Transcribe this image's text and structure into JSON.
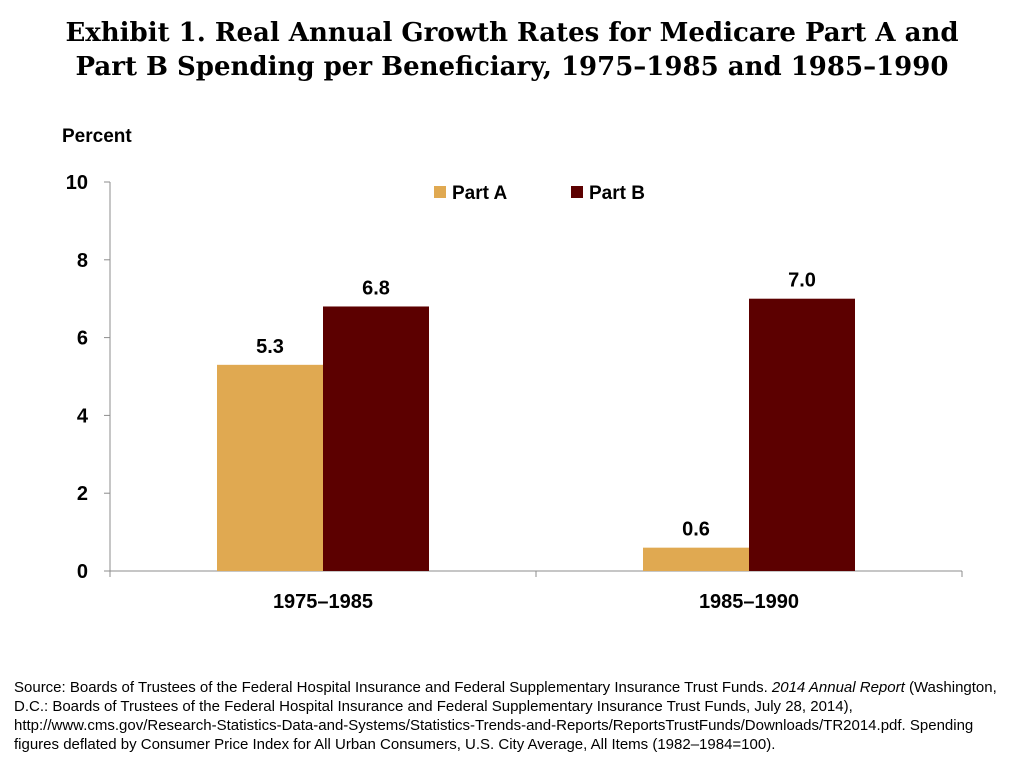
{
  "title_lines": [
    "Exhibit 1. Real Annual Growth Rates for Medicare Part A and",
    "Part B Spending per Beneficiary, 1975–1985 and 1985–1990"
  ],
  "colors": {
    "part_a": "#E0A951",
    "part_b": "#5C0000",
    "axis": "#8C8C8C"
  },
  "chart_data": {
    "type": "bar",
    "title": "Real Annual Growth Rates for Medicare Part A and Part B Spending per Beneficiary, 1975–1985 and 1985–1990",
    "ylabel": "Percent",
    "xlabel": "",
    "ylim": [
      0,
      10
    ],
    "yticks": [
      0,
      2,
      4,
      6,
      8,
      10
    ],
    "legend_position": "top",
    "categories": [
      "1975–1985",
      "1985–1990"
    ],
    "series": [
      {
        "name": "Part A",
        "values": [
          5.3,
          0.6
        ],
        "labels": [
          "5.3",
          "0.6"
        ]
      },
      {
        "name": "Part B",
        "values": [
          6.8,
          7.0
        ],
        "labels": [
          "6.8",
          "7.0"
        ]
      }
    ],
    "grid": false
  },
  "source": {
    "prefix": "Source: Boards of Trustees of the Federal Hospital Insurance and Federal Supplementary Insurance Trust Funds. ",
    "italic": "2014 Annual Report",
    "rest": " (Washington, D.C.: Boards of Trustees of the Federal Hospital Insurance and Federal Supplementary Insurance Trust Funds, July 28, 2014), http://www.cms.gov/Research-Statistics-Data-and-Systems/Statistics-Trends-and-Reports/ReportsTrustFunds/Downloads/TR2014.pdf. Spending figures deflated by Consumer Price Index for All Urban Consumers, U.S. City Average, All Items (1982–1984=100)."
  }
}
